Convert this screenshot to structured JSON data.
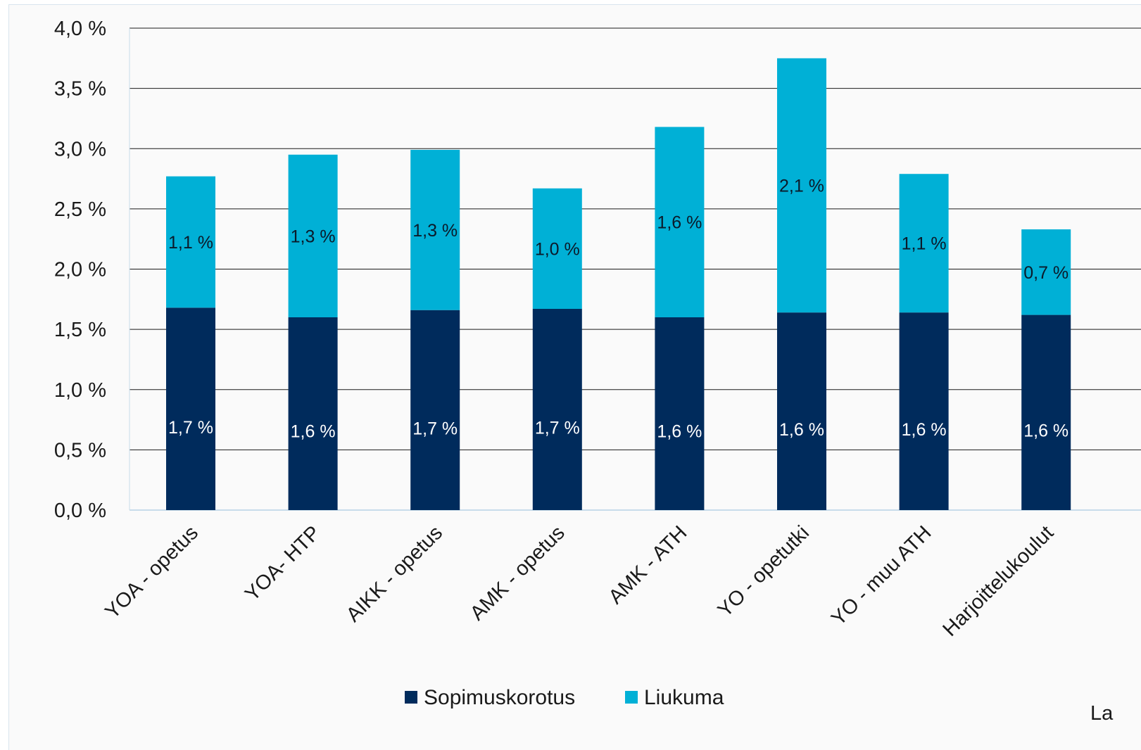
{
  "chart_data": {
    "type": "bar",
    "stacked": true,
    "categories": [
      "YOA - opetus",
      "YOA- HTP",
      "AIKK - opetus",
      "AMK - opetus",
      "AMK - ATH",
      "YO - opetutki",
      "YO - muu ATH",
      "Harjoittelukoulut"
    ],
    "series": [
      {
        "name": "Sopimuskorotus",
        "color": "#002b5c",
        "values": [
          1.68,
          1.6,
          1.66,
          1.67,
          1.6,
          1.64,
          1.64,
          1.62
        ],
        "labels": [
          "1,7 %",
          "1,6 %",
          "1,7 %",
          "1,7 %",
          "1,6 %",
          "1,6 %",
          "1,6 %",
          "1,6 %"
        ]
      },
      {
        "name": "Liukuma",
        "color": "#00b0d6",
        "values": [
          1.09,
          1.35,
          1.33,
          1.0,
          1.58,
          2.11,
          1.15,
          0.71
        ],
        "labels": [
          "1,1 %",
          "1,3 %",
          "1,3 %",
          "1,0 %",
          "1,6 %",
          "2,1 %",
          "1,1 %",
          "0,7 %"
        ]
      }
    ],
    "ylim": [
      0,
      4.0
    ],
    "yticks": [
      0,
      0.5,
      1.0,
      1.5,
      2.0,
      2.5,
      3.0,
      3.5,
      4.0
    ],
    "ytick_labels": [
      "0,0 %",
      "0,5 %",
      "1,0 %",
      "1,5 %",
      "2,0 %",
      "2,5 %",
      "3,0 %",
      "3,5 %",
      "4,0 %"
    ],
    "grid": true,
    "legend": "bottom",
    "title": "",
    "xlabel": "",
    "ylabel": ""
  },
  "footnote": "La"
}
